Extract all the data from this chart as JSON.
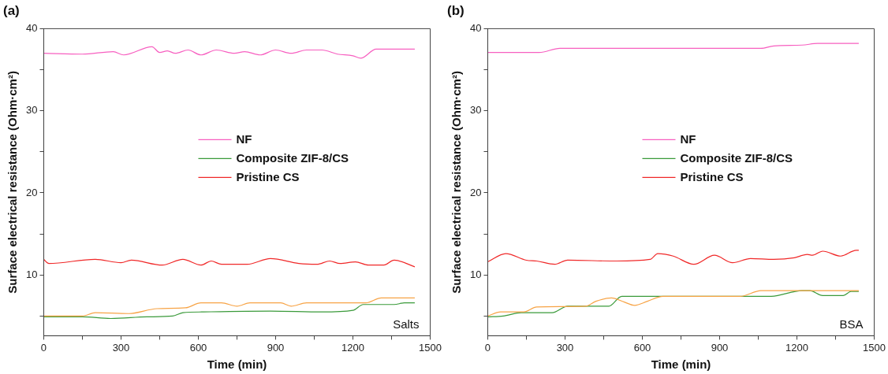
{
  "chart_data": [
    {
      "type": "line",
      "title": "(a)",
      "xlabel": "Time (min)",
      "ylabel": "Surface electrical resistance (Ohm·cm²)",
      "annotations": [
        "Salts"
      ],
      "legend": "center",
      "xlim": [
        0,
        1500
      ],
      "ylim": [
        2.6,
        40
      ],
      "xticks": [
        0,
        {
          "value": 150,
          "label": null
        },
        300,
        {
          "value": 450,
          "label": null
        },
        600,
        {
          "value": 750,
          "label": null
        },
        900,
        {
          "value": 1050,
          "label": null
        },
        1200,
        {
          "value": 1350,
          "label": null
        },
        1500
      ],
      "yticks": [
        {
          "value": 5,
          "label": null
        },
        10,
        {
          "value": 15,
          "label": null
        },
        20,
        {
          "value": 25,
          "label": null
        },
        30,
        {
          "value": 35,
          "label": null
        },
        40
      ],
      "series": [
        {
          "color": "#f7a345",
          "x": [
            0,
            150,
            200,
            330,
            440,
            550,
            610,
            690,
            750,
            800,
            920,
            960,
            1020,
            1180,
            1250,
            1310,
            1440
          ],
          "values": [
            5.0,
            5.0,
            5.4,
            5.3,
            5.9,
            6.0,
            6.6,
            6.6,
            6.2,
            6.6,
            6.6,
            6.2,
            6.6,
            6.6,
            6.6,
            7.2,
            7.2
          ]
        },
        {
          "name": "NF",
          "color": "#f75fc0",
          "x": [
            0,
            150,
            270,
            310,
            420,
            450,
            480,
            510,
            560,
            610,
            670,
            740,
            780,
            840,
            900,
            960,
            1020,
            1080,
            1140,
            1200,
            1230,
            1290,
            1440
          ],
          "values": [
            37.0,
            36.9,
            37.2,
            36.8,
            37.8,
            37.1,
            37.3,
            37.0,
            37.4,
            36.8,
            37.4,
            37.0,
            37.2,
            36.8,
            37.4,
            37.0,
            37.4,
            37.4,
            36.9,
            36.7,
            36.4,
            37.5,
            37.5
          ]
        },
        {
          "name": "Composite ZIF-8/CS",
          "color": "#3a9a3a",
          "x": [
            0,
            150,
            260,
            400,
            500,
            540,
            620,
            880,
            1080,
            1200,
            1240,
            1360,
            1400,
            1440
          ],
          "values": [
            4.9,
            4.9,
            4.7,
            4.9,
            5.0,
            5.4,
            5.5,
            5.6,
            5.5,
            5.7,
            6.4,
            6.4,
            6.6,
            6.6
          ]
        },
        {
          "name": "Pristine CS",
          "color": "#f02828",
          "x": [
            0,
            20,
            200,
            300,
            340,
            460,
            540,
            610,
            650,
            690,
            790,
            880,
            990,
            1060,
            1110,
            1150,
            1210,
            1260,
            1320,
            1360,
            1440
          ],
          "values": [
            11.9,
            11.4,
            11.9,
            11.5,
            11.8,
            11.2,
            11.9,
            11.2,
            11.7,
            11.3,
            11.3,
            12.0,
            11.4,
            11.3,
            11.7,
            11.4,
            11.6,
            11.2,
            11.2,
            11.8,
            11.0
          ]
        }
      ]
    },
    {
      "type": "line",
      "title": "(b)",
      "xlabel": "Time (min)",
      "ylabel": "Surface electrical resistance (Ohm·cm²)",
      "annotations": [
        "BSA"
      ],
      "legend": "center",
      "xlim": [
        0,
        1500
      ],
      "ylim": [
        2.6,
        40
      ],
      "xticks": [
        0,
        {
          "value": 150,
          "label": null
        },
        300,
        {
          "value": 450,
          "label": null
        },
        600,
        {
          "value": 750,
          "label": null
        },
        900,
        {
          "value": 1050,
          "label": null
        },
        1200,
        {
          "value": 1350,
          "label": null
        },
        1500
      ],
      "yticks": [
        {
          "value": 5,
          "label": null
        },
        10,
        {
          "value": 15,
          "label": null
        },
        20,
        {
          "value": 25,
          "label": null
        },
        30,
        {
          "value": 35,
          "label": null
        },
        40
      ],
      "series": [
        {
          "color": "#f7a345",
          "x": [
            0,
            50,
            140,
            190,
            380,
            420,
            480,
            530,
            570,
            620,
            680,
            980,
            1060,
            1440
          ],
          "values": [
            5.0,
            5.5,
            5.5,
            6.1,
            6.2,
            6.8,
            7.2,
            6.7,
            6.3,
            6.8,
            7.4,
            7.4,
            8.1,
            8.1
          ]
        },
        {
          "name": "NF",
          "color": "#f75fc0",
          "x": [
            0,
            200,
            280,
            1060,
            1110,
            1220,
            1280,
            1440
          ],
          "values": [
            37.1,
            37.1,
            37.6,
            37.6,
            37.9,
            38.0,
            38.2,
            38.2
          ]
        },
        {
          "name": "Composite ZIF-8/CS",
          "color": "#3a9a3a",
          "x": [
            0,
            60,
            130,
            250,
            310,
            470,
            520,
            1100,
            1220,
            1250,
            1300,
            1380,
            1410,
            1440
          ],
          "values": [
            4.9,
            5.0,
            5.4,
            5.4,
            6.2,
            6.2,
            7.4,
            7.4,
            8.1,
            8.1,
            7.5,
            7.5,
            8.0,
            8.0
          ]
        },
        {
          "name": "Pristine CS",
          "color": "#f02828",
          "x": [
            0,
            70,
            150,
            190,
            260,
            310,
            500,
            630,
            660,
            720,
            800,
            880,
            950,
            1020,
            1110,
            1190,
            1240,
            1260,
            1300,
            1370,
            1430,
            1440
          ],
          "values": [
            11.6,
            12.6,
            11.8,
            11.7,
            11.3,
            11.8,
            11.7,
            11.9,
            12.6,
            12.3,
            11.3,
            12.4,
            11.5,
            12.0,
            11.9,
            12.1,
            12.5,
            12.4,
            12.9,
            12.3,
            13.0,
            13.0
          ]
        }
      ]
    }
  ]
}
